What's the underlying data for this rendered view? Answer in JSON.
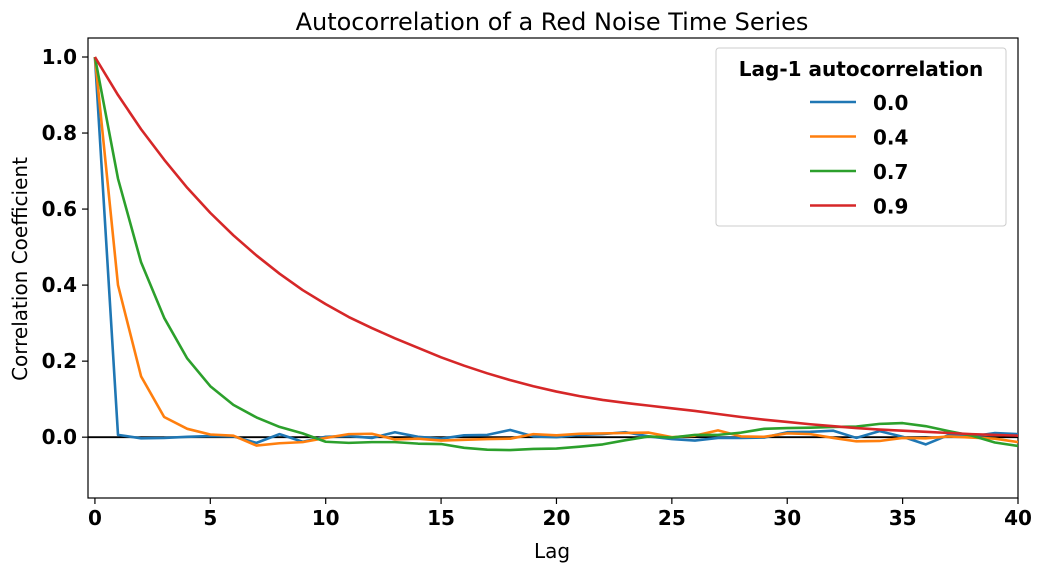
{
  "chart_data": {
    "type": "line",
    "title": "Autocorrelation of a Red Noise Time Series",
    "xlabel": "Lag",
    "ylabel": "Correlation Coefficient",
    "xlim": [
      -0.3,
      40
    ],
    "ylim": [
      -0.16,
      1.05
    ],
    "xticks": [
      "0",
      "5",
      "10",
      "15",
      "20",
      "25",
      "30",
      "35",
      "40"
    ],
    "yticks": [
      "0.0",
      "0.2",
      "0.4",
      "0.6",
      "0.8",
      "1.0"
    ],
    "grid": false,
    "legend_position": "top-right",
    "legend_title": "Lag-1 autocorrelation",
    "x": [
      0,
      1,
      2,
      3,
      4,
      5,
      6,
      7,
      8,
      9,
      10,
      11,
      12,
      13,
      14,
      15,
      16,
      17,
      18,
      19,
      20,
      21,
      22,
      23,
      24,
      25,
      26,
      27,
      28,
      29,
      30,
      31,
      32,
      33,
      34,
      35,
      36,
      37,
      38,
      39,
      40
    ],
    "series": [
      {
        "name": "0.0",
        "color": "#1f77b4",
        "values": [
          1.0,
          0.006,
          -0.003,
          -0.002,
          0.001,
          0.003,
          0.002,
          -0.015,
          0.008,
          -0.012,
          0.001,
          0.003,
          -0.002,
          0.013,
          0.001,
          -0.004,
          0.005,
          0.006,
          0.019,
          0.002,
          0.0,
          0.006,
          0.008,
          0.013,
          0.002,
          -0.005,
          -0.009,
          -0.002,
          -0.002,
          -0.001,
          0.013,
          0.014,
          0.017,
          -0.002,
          0.016,
          0.001,
          -0.019,
          0.006,
          0.002,
          0.011,
          0.008
        ]
      },
      {
        "name": "0.4",
        "color": "#ff7f0e",
        "values": [
          1.0,
          0.4,
          0.16,
          0.053,
          0.022,
          0.007,
          0.004,
          -0.022,
          -0.016,
          -0.013,
          -0.002,
          0.008,
          0.009,
          -0.006,
          -0.004,
          -0.009,
          -0.007,
          -0.005,
          -0.004,
          0.008,
          0.005,
          0.009,
          0.01,
          0.011,
          0.012,
          0.0,
          0.004,
          0.018,
          0.002,
          0.001,
          0.01,
          0.008,
          -0.002,
          -0.011,
          -0.01,
          -0.002,
          -0.003,
          0.002,
          -0.001,
          -0.004,
          -0.013
        ]
      },
      {
        "name": "0.7",
        "color": "#2ca02c",
        "values": [
          1.0,
          0.68,
          0.46,
          0.314,
          0.207,
          0.134,
          0.085,
          0.052,
          0.027,
          0.01,
          -0.012,
          -0.015,
          -0.013,
          -0.013,
          -0.017,
          -0.018,
          -0.028,
          -0.033,
          -0.034,
          -0.031,
          -0.03,
          -0.025,
          -0.019,
          -0.008,
          0.002,
          -0.001,
          0.006,
          0.006,
          0.012,
          0.022,
          0.024,
          0.025,
          0.027,
          0.028,
          0.035,
          0.037,
          0.029,
          0.016,
          0.004,
          -0.014,
          -0.023
        ]
      },
      {
        "name": "0.9",
        "color": "#d62728",
        "values": [
          1.0,
          0.9,
          0.81,
          0.73,
          0.656,
          0.59,
          0.531,
          0.478,
          0.43,
          0.387,
          0.35,
          0.316,
          0.287,
          0.26,
          0.235,
          0.21,
          0.188,
          0.168,
          0.15,
          0.134,
          0.12,
          0.108,
          0.098,
          0.09,
          0.083,
          0.076,
          0.069,
          0.061,
          0.053,
          0.046,
          0.04,
          0.034,
          0.029,
          0.024,
          0.02,
          0.017,
          0.014,
          0.011,
          0.008,
          0.006,
          0.004
        ]
      }
    ],
    "zero_line": {
      "y": 0,
      "color": "#000000"
    }
  }
}
